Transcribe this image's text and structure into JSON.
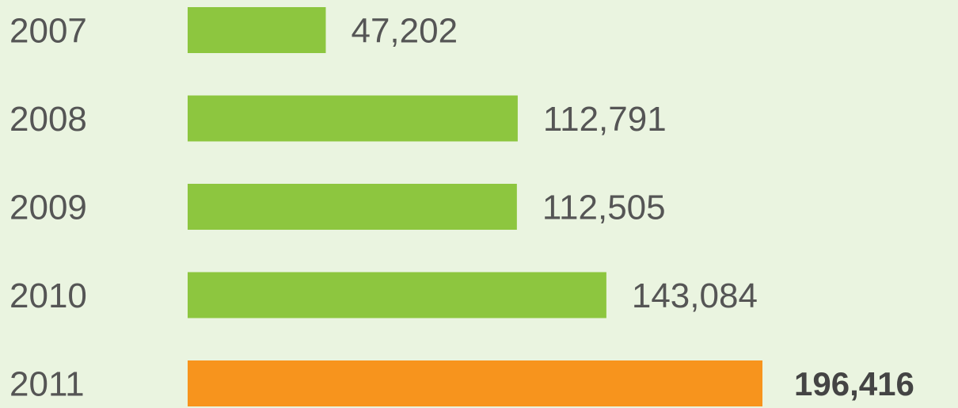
{
  "chart_data": {
    "type": "bar",
    "orientation": "horizontal",
    "categories": [
      "2007",
      "2008",
      "2009",
      "2010",
      "2011"
    ],
    "values": [
      47202,
      112791,
      112505,
      143084,
      196416
    ],
    "value_labels": [
      "47,202",
      "112,791",
      "112,505",
      "143,084",
      "196,416"
    ],
    "colors": [
      "#8dc63f",
      "#8dc63f",
      "#8dc63f",
      "#8dc63f",
      "#f7941d"
    ]
  }
}
